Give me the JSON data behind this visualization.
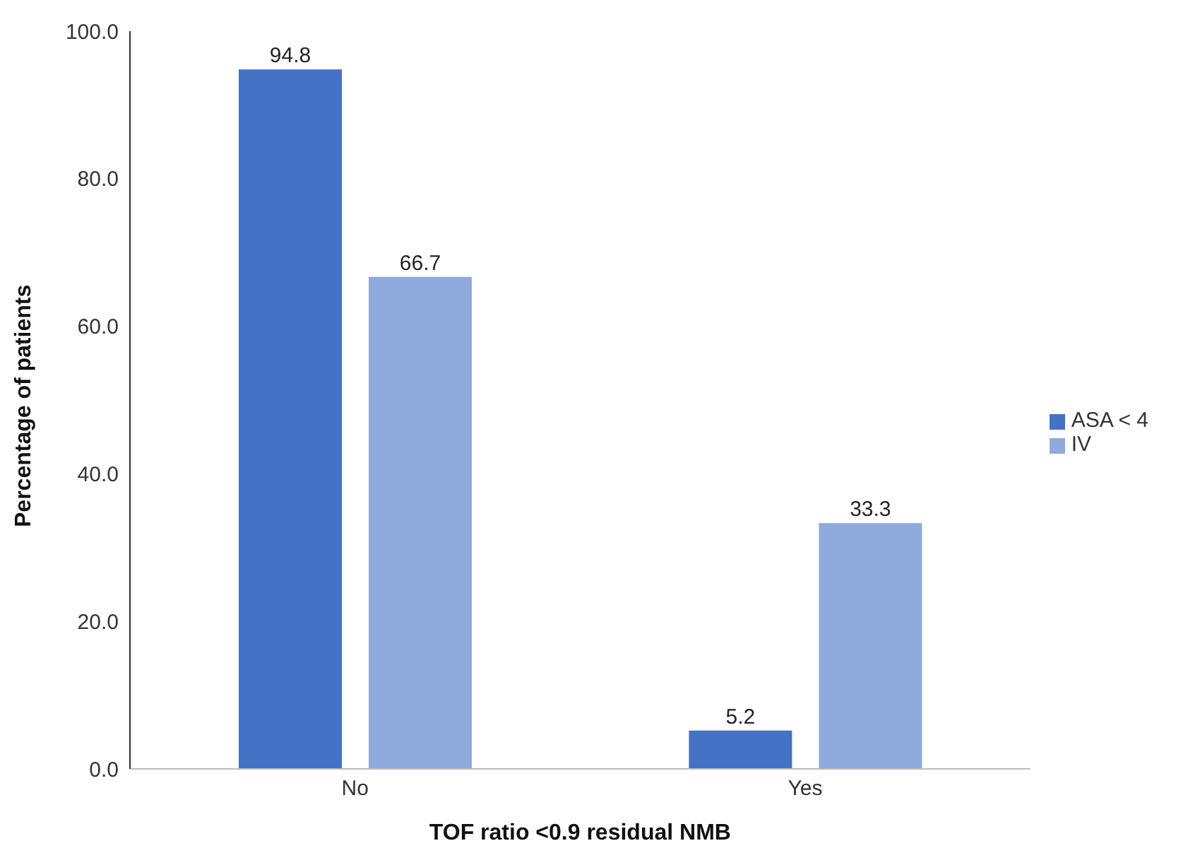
{
  "chart_data": {
    "type": "bar",
    "xlabel": "TOF ratio <0.9 residual NMB",
    "ylabel": "Percentage of patients",
    "categories": [
      "No",
      "Yes"
    ],
    "series": [
      {
        "name": "ASA < 4",
        "color": "#4472c4",
        "values": [
          94.8,
          5.2
        ]
      },
      {
        "name": "IV",
        "color": "#8faadc",
        "values": [
          66.7,
          33.3
        ]
      }
    ],
    "ylim": [
      0,
      100
    ],
    "yticks": [
      {
        "value": 0,
        "label": "0.0"
      },
      {
        "value": 20,
        "label": "20.0"
      },
      {
        "value": 40,
        "label": "40.0"
      },
      {
        "value": 60,
        "label": "60.0"
      },
      {
        "value": 80,
        "label": "80.0"
      },
      {
        "value": 100,
        "label": "100.0"
      }
    ],
    "data_labels": true,
    "grid": false,
    "legend": "right"
  }
}
